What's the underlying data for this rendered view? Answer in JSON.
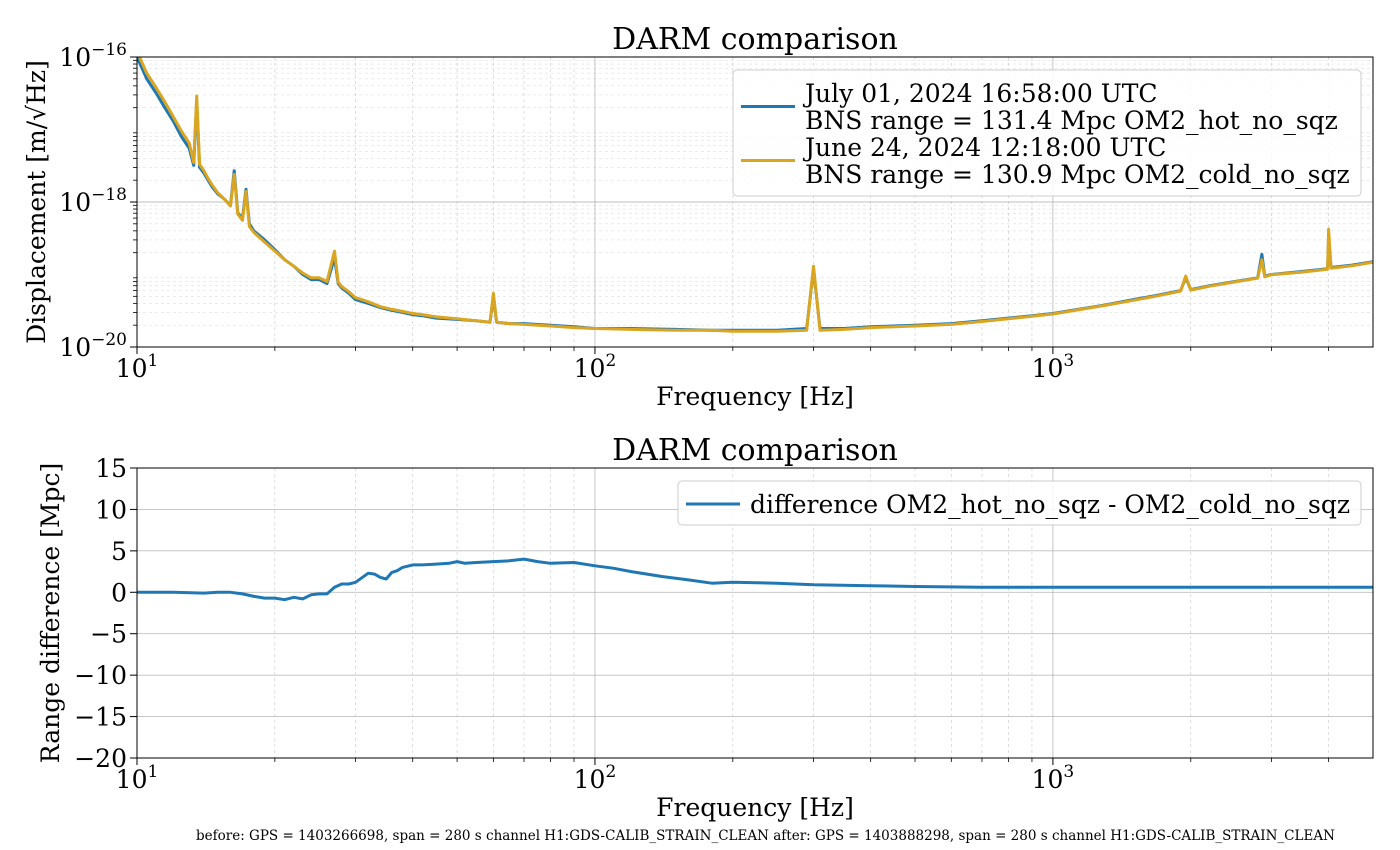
{
  "figure": {
    "footer": "before: GPS = 1403266698, span = 280 s channel H1:GDS-CALIB_STRAIN_CLEAN after: GPS = 1403888298, span = 280 s channel H1:GDS-CALIB_STRAIN_CLEAN",
    "colors": {
      "blue": "#1f77b4",
      "gold": "#daa520",
      "grid": "#b0b0b0"
    }
  },
  "chart_data": [
    {
      "type": "line",
      "title": "DARM comparison",
      "xlabel": "Frequency [Hz]",
      "ylabel": "Displacement [m/√Hz]",
      "xscale": "log",
      "yscale": "log",
      "xlim": [
        10,
        5000
      ],
      "ylim": [
        1e-20,
        1e-16
      ],
      "xticks": [
        {
          "value": 10,
          "base": "10",
          "exp": "1"
        },
        {
          "value": 100,
          "base": "10",
          "exp": "2"
        },
        {
          "value": 1000,
          "base": "10",
          "exp": "3"
        }
      ],
      "yticks": [
        {
          "value": 1e-16,
          "base": "10",
          "exp": "−16"
        },
        {
          "value": 1e-18,
          "base": "10",
          "exp": "−18"
        },
        {
          "value": 1e-20,
          "base": "10",
          "exp": "−20"
        }
      ],
      "grid": true,
      "legend_position": "top-right",
      "series": [
        {
          "name": "July 01, 2024 16:58:00 UTC\nBNS range = 131.4 Mpc OM2_hot_no_sqz",
          "color": "#1f77b4",
          "x": [
            10,
            10.5,
            11,
            11.5,
            12,
            12.5,
            13,
            13.3,
            13.5,
            13.7,
            14,
            14.3,
            14.6,
            15,
            15.5,
            16,
            16.3,
            16.6,
            17,
            17.3,
            17.6,
            18,
            19,
            20,
            21,
            22,
            23,
            24,
            25,
            26,
            27,
            27.5,
            28,
            29,
            30,
            32,
            34,
            36,
            38,
            40,
            42,
            45,
            50,
            55,
            59,
            60,
            61,
            65,
            70,
            80,
            90,
            100,
            120,
            150,
            180,
            200,
            250,
            290,
            300,
            310,
            350,
            400,
            500,
            600,
            700,
            800,
            900,
            1000,
            1100,
            1200,
            1300,
            1500,
            1700,
            1900,
            1950,
            2000,
            2200,
            2500,
            2800,
            2860,
            2900,
            3000,
            3500,
            3980,
            4000,
            4050,
            4500,
            5000
          ],
          "y": [
            1e-16,
            5e-17,
            3.2e-17,
            2e-17,
            1.3e-17,
            8e-18,
            5.5e-18,
            3.2e-18,
            2.5e-17,
            3e-18,
            2.5e-18,
            2e-18,
            1.6e-18,
            1.3e-18,
            1.1e-18,
            9e-19,
            2.7e-18,
            7e-19,
            6e-19,
            1.5e-18,
            5e-19,
            4e-19,
            3e-19,
            2.2e-19,
            1.6e-19,
            1.3e-19,
            1e-19,
            8.5e-20,
            8.5e-20,
            7.5e-20,
            1.7e-19,
            7.5e-20,
            6.5e-20,
            5.5e-20,
            4.5e-20,
            4e-20,
            3.5e-20,
            3.2e-20,
            3e-20,
            2.8e-20,
            2.7e-20,
            2.5e-20,
            2.4e-20,
            2.3e-20,
            2.2e-20,
            5e-20,
            2.2e-20,
            2.1e-20,
            2.1e-20,
            2e-20,
            1.9e-20,
            1.8e-20,
            1.8e-20,
            1.75e-20,
            1.7e-20,
            1.7e-20,
            1.7e-20,
            1.8e-20,
            1.2e-19,
            1.8e-20,
            1.8e-20,
            1.9e-20,
            2e-20,
            2.1e-20,
            2.3e-20,
            2.5e-20,
            2.7e-20,
            2.9e-20,
            3.2e-20,
            3.5e-20,
            3.8e-20,
            4.5e-20,
            5.2e-20,
            6e-20,
            9e-20,
            6.2e-20,
            7e-20,
            8e-20,
            9e-20,
            1.9e-19,
            9.5e-20,
            1e-19,
            1.1e-19,
            1.2e-19,
            3e-19,
            1.25e-19,
            1.35e-19,
            1.5e-19
          ]
        },
        {
          "name": "June 24, 2024 12:18:00 UTC\nBNS range = 130.9 Mpc OM2_cold_no_sqz",
          "color": "#daa520",
          "x": [
            10,
            10.5,
            11,
            11.5,
            12,
            12.5,
            13,
            13.3,
            13.5,
            13.7,
            14,
            14.3,
            14.6,
            15,
            15.5,
            16,
            16.3,
            16.6,
            17,
            17.3,
            17.6,
            18,
            19,
            20,
            21,
            22,
            23,
            24,
            25,
            26,
            27,
            27.5,
            28,
            29,
            30,
            32,
            34,
            36,
            38,
            40,
            42,
            45,
            50,
            55,
            59,
            60,
            61,
            65,
            70,
            80,
            90,
            100,
            120,
            150,
            180,
            200,
            250,
            290,
            300,
            310,
            350,
            400,
            500,
            600,
            700,
            800,
            900,
            1000,
            1100,
            1200,
            1300,
            1500,
            1700,
            1900,
            1950,
            2000,
            2200,
            2500,
            2800,
            2860,
            2900,
            3000,
            3500,
            3980,
            4000,
            4050,
            4500,
            5000
          ],
          "y": [
            1.2e-16,
            6e-17,
            3.8e-17,
            2.4e-17,
            1.5e-17,
            9.5e-18,
            6.5e-18,
            3.5e-18,
            2.9e-17,
            3.3e-18,
            2.7e-18,
            2.1e-18,
            1.7e-18,
            1.35e-18,
            1.1e-18,
            8.8e-19,
            2.4e-18,
            6.8e-19,
            5.6e-19,
            1.4e-18,
            4.6e-19,
            3.8e-19,
            2.8e-19,
            2.1e-19,
            1.6e-19,
            1.3e-19,
            1.05e-19,
            9e-20,
            9e-20,
            8e-20,
            2.1e-19,
            7.8e-20,
            6.8e-20,
            5.8e-20,
            4.8e-20,
            4.2e-20,
            3.6e-20,
            3.3e-20,
            3.1e-20,
            2.9e-20,
            2.8e-20,
            2.6e-20,
            2.45e-20,
            2.3e-20,
            2.2e-20,
            5.5e-20,
            2.2e-20,
            2.1e-20,
            2.05e-20,
            1.95e-20,
            1.85e-20,
            1.8e-20,
            1.75e-20,
            1.7e-20,
            1.7e-20,
            1.65e-20,
            1.65e-20,
            1.7e-20,
            1.3e-19,
            1.7e-20,
            1.75e-20,
            1.85e-20,
            1.95e-20,
            2.05e-20,
            2.25e-20,
            2.45e-20,
            2.65e-20,
            2.85e-20,
            3.15e-20,
            3.45e-20,
            3.75e-20,
            4.4e-20,
            5.1e-20,
            5.9e-20,
            9.5e-20,
            6.1e-20,
            6.9e-20,
            7.9e-20,
            8.9e-20,
            1.6e-19,
            9.3e-20,
            9.9e-20,
            1.08e-19,
            1.18e-19,
            4.2e-19,
            1.22e-19,
            1.32e-19,
            1.48e-19
          ]
        }
      ]
    },
    {
      "type": "line",
      "title": "DARM comparison",
      "xlabel": "Frequency [Hz]",
      "ylabel": "Range difference [Mpc]",
      "xscale": "log",
      "yscale": "linear",
      "xlim": [
        10,
        5000
      ],
      "ylim": [
        -20,
        15
      ],
      "xticks": [
        {
          "value": 10,
          "base": "10",
          "exp": "1"
        },
        {
          "value": 100,
          "base": "10",
          "exp": "2"
        },
        {
          "value": 1000,
          "base": "10",
          "exp": "3"
        }
      ],
      "yticks": [
        {
          "value": 15,
          "label": "15"
        },
        {
          "value": 10,
          "label": "10"
        },
        {
          "value": 5,
          "label": "5"
        },
        {
          "value": 0,
          "label": "0"
        },
        {
          "value": -5,
          "label": "−5"
        },
        {
          "value": -10,
          "label": "−10"
        },
        {
          "value": -15,
          "label": "−15"
        },
        {
          "value": -20,
          "label": "−20"
        }
      ],
      "grid": true,
      "legend_position": "top-right",
      "series": [
        {
          "name": "difference OM2_hot_no_sqz - OM2_cold_no_sqz",
          "color": "#1f77b4",
          "x": [
            10,
            12,
            14,
            15,
            16,
            17,
            18,
            19,
            20,
            21,
            22,
            23,
            24,
            25,
            26,
            27,
            28,
            29,
            30,
            32,
            33,
            34,
            35,
            36,
            37,
            38,
            40,
            42,
            45,
            48,
            50,
            52,
            55,
            60,
            65,
            70,
            75,
            80,
            90,
            100,
            110,
            120,
            140,
            160,
            180,
            200,
            250,
            300,
            400,
            500,
            700,
            1000,
            2000,
            5000
          ],
          "y": [
            0,
            0,
            -0.1,
            0,
            0,
            -0.2,
            -0.5,
            -0.7,
            -0.7,
            -0.9,
            -0.6,
            -0.8,
            -0.3,
            -0.2,
            -0.2,
            0.6,
            1.0,
            1.0,
            1.2,
            2.3,
            2.2,
            1.8,
            1.6,
            2.4,
            2.6,
            3.0,
            3.3,
            3.3,
            3.4,
            3.5,
            3.7,
            3.5,
            3.6,
            3.7,
            3.8,
            4.0,
            3.7,
            3.5,
            3.6,
            3.2,
            2.9,
            2.5,
            1.9,
            1.5,
            1.1,
            1.2,
            1.1,
            0.9,
            0.8,
            0.7,
            0.6,
            0.6,
            0.6,
            0.6
          ]
        }
      ]
    }
  ]
}
